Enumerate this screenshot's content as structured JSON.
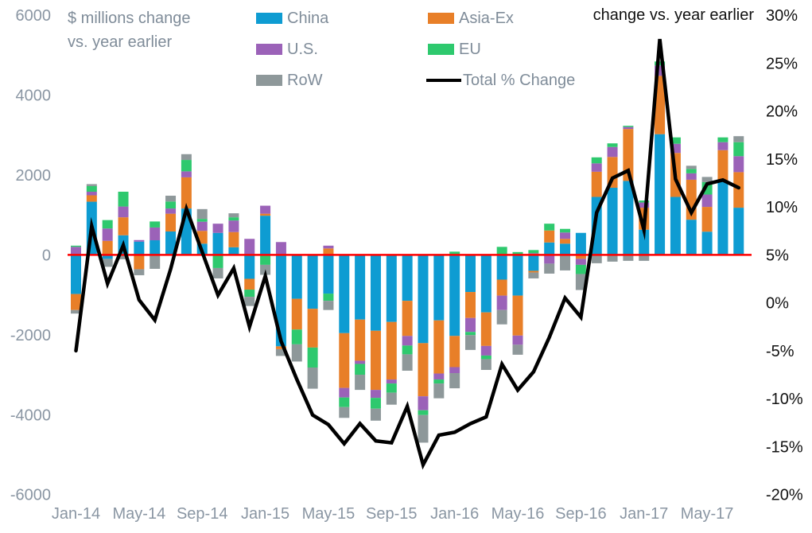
{
  "titles": {
    "left_line1": "$ millions change",
    "left_line2": "vs. year earlier",
    "right": "change vs. year earlier"
  },
  "legend": [
    {
      "label": "China",
      "color": "#0e9cd2",
      "type": "box"
    },
    {
      "label": "Asia-Ex",
      "color": "#e87f28",
      "type": "box"
    },
    {
      "label": "U.S.",
      "color": "#9b62b8",
      "type": "box"
    },
    {
      "label": "EU",
      "color": "#2ec96e",
      "type": "box"
    },
    {
      "label": "RoW",
      "color": "#8e989a",
      "type": "box"
    },
    {
      "label": "Total % Change",
      "color": "#000000",
      "type": "line"
    }
  ],
  "colors": {
    "china": "#0e9cd2",
    "asia_ex": "#e87f28",
    "us": "#9b62b8",
    "eu": "#2ec96e",
    "row": "#8e989a",
    "total_line": "#000000",
    "zero_line": "#ff0000",
    "axis_text_left": "#8a96a3",
    "axis_text_right": "#111111"
  },
  "chart_data": {
    "type": "bar",
    "subtype": "stacked-bars-with-line-overlay",
    "title": "$ millions change vs. year earlier / change vs. year earlier",
    "left_axis": {
      "label": "$ millions change vs. year earlier",
      "min": -6000,
      "max": 6000,
      "ticks": [
        6000,
        4000,
        2000,
        0,
        -2000,
        -4000,
        -6000
      ]
    },
    "right_axis": {
      "label": "change vs. year earlier",
      "min": -20,
      "max": 30,
      "ticks": [
        "30%",
        "25%",
        "20%",
        "15%",
        "10%",
        "5%",
        "0%",
        "-5%",
        "-10%",
        "-15%",
        "-20%"
      ]
    },
    "grid": false,
    "legend_position": "top-center",
    "x_tick_every": 4,
    "categories": [
      "Jan-14",
      "Feb-14",
      "Mar-14",
      "Apr-14",
      "May-14",
      "Jun-14",
      "Jul-14",
      "Aug-14",
      "Sep-14",
      "Oct-14",
      "Nov-14",
      "Dec-14",
      "Jan-15",
      "Feb-15",
      "Mar-15",
      "Apr-15",
      "May-15",
      "Jun-15",
      "Jul-15",
      "Aug-15",
      "Sep-15",
      "Oct-15",
      "Nov-15",
      "Dec-15",
      "Jan-16",
      "Feb-16",
      "Mar-16",
      "Apr-16",
      "May-16",
      "Jun-16",
      "Jul-16",
      "Aug-16",
      "Sep-16",
      "Oct-16",
      "Nov-16",
      "Dec-16",
      "Jan-17",
      "Feb-17",
      "Mar-17",
      "Apr-17",
      "May-17",
      "Jun-17",
      "Jul-17"
    ],
    "series": [
      {
        "name": "China",
        "color_key": "china",
        "values": [
          -980,
          1330,
          -100,
          490,
          330,
          365,
          585,
          1160,
          280,
          550,
          190,
          -600,
          980,
          -2290,
          -1100,
          -1350,
          -970,
          -1960,
          -1620,
          -1900,
          -1680,
          -1150,
          -2210,
          -1640,
          -2030,
          -930,
          -1440,
          -620,
          -1020,
          -400,
          310,
          280,
          550,
          1450,
          1680,
          1850,
          630,
          3020,
          1450,
          880,
          580,
          1840,
          1180
        ]
      },
      {
        "name": "Asia-Ex",
        "color_key": "asia_ex",
        "values": [
          -400,
          160,
          350,
          450,
          -360,
          0,
          445,
          780,
          320,
          0,
          380,
          -270,
          50,
          -70,
          -770,
          -970,
          160,
          -1370,
          -1030,
          -1480,
          -1440,
          -880,
          -1330,
          -1330,
          -780,
          -650,
          -840,
          -400,
          -1000,
          -40,
          300,
          120,
          -100,
          630,
          770,
          1300,
          550,
          1460,
          1100,
          1000,
          620,
          780,
          890
        ]
      },
      {
        "name": "U.S.",
        "color_key": "us",
        "values": [
          200,
          90,
          310,
          270,
          40,
          320,
          130,
          150,
          230,
          230,
          290,
          400,
          200,
          320,
          0,
          0,
          70,
          -240,
          -80,
          -200,
          -100,
          -240,
          -350,
          -150,
          -150,
          -350,
          -240,
          -360,
          -230,
          40,
          -220,
          160,
          -150,
          210,
          250,
          50,
          130,
          260,
          230,
          160,
          310,
          200,
          400
        ]
      },
      {
        "name": "EU",
        "color_key": "eu",
        "values": [
          30,
          140,
          210,
          370,
          0,
          150,
          175,
          285,
          70,
          -330,
          80,
          -180,
          -250,
          0,
          -370,
          -500,
          -180,
          -240,
          -270,
          -270,
          -230,
          -220,
          -120,
          -100,
          80,
          -80,
          -90,
          200,
          70,
          80,
          170,
          90,
          -230,
          150,
          90,
          30,
          50,
          100,
          160,
          110,
          310,
          120,
          350
        ]
      },
      {
        "name": "RoW",
        "color_key": "row",
        "values": [
          -90,
          50,
          -200,
          -110,
          -150,
          -350,
          145,
          145,
          245,
          -260,
          100,
          -230,
          -250,
          -170,
          -430,
          -530,
          -230,
          -270,
          -380,
          -300,
          -300,
          -410,
          -690,
          -370,
          -380,
          -370,
          -270,
          -360,
          -250,
          -150,
          -250,
          -390,
          -400,
          -210,
          -170,
          -150,
          -150,
          0,
          0,
          80,
          130,
          0,
          150
        ]
      }
    ],
    "line_series": {
      "name": "Total % Change",
      "axis": "right",
      "unit": "%",
      "values": [
        -5.0,
        8.0,
        2.0,
        6.0,
        0.3,
        -1.8,
        3.5,
        9.8,
        5.3,
        0.8,
        3.6,
        -2.5,
        2.8,
        -4.0,
        -8.0,
        -11.7,
        -12.7,
        -14.7,
        -12.6,
        -14.4,
        -14.6,
        -10.8,
        -16.9,
        -13.8,
        -13.5,
        -12.6,
        -11.9,
        -6.4,
        -9.1,
        -7.2,
        -3.6,
        0.5,
        -1.5,
        9.4,
        13.0,
        13.8,
        7.6,
        27.5,
        12.9,
        9.4,
        12.4,
        12.8,
        12.0
      ]
    },
    "zero_line_value": 0
  }
}
